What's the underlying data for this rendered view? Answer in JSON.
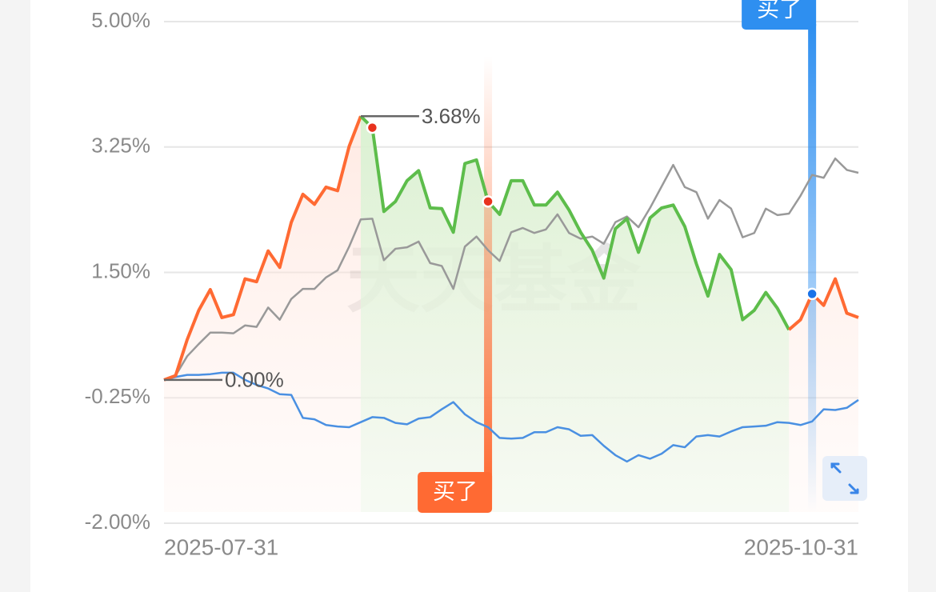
{
  "chart_data": {
    "type": "line",
    "categories": [
      "2025-07-31",
      null,
      null,
      null,
      null,
      null,
      null,
      null,
      null,
      null,
      null,
      null,
      null,
      null,
      null,
      null,
      null,
      null,
      null,
      null,
      null,
      null,
      null,
      null,
      null,
      null,
      null,
      null,
      null,
      null,
      null,
      null,
      null,
      null,
      null,
      null,
      null,
      null,
      null,
      null,
      null,
      null,
      null,
      null,
      null,
      null,
      null,
      null,
      null,
      null,
      null,
      null,
      null,
      null,
      null,
      null,
      null,
      null,
      null,
      null,
      "2025-10-31"
    ],
    "ylim": [
      -2,
      5
    ],
    "yticks": [
      {
        "value": -2,
        "label": "-2.00%"
      },
      {
        "value": -0.25,
        "label": "-0.25%"
      },
      {
        "value": 1.5,
        "label": "1.50%"
      },
      {
        "value": 3.25,
        "label": "3.25%"
      },
      {
        "value": 5,
        "label": "5.00%"
      }
    ],
    "grid": true,
    "watermark": "天天基金",
    "drawdown_color": "#5dbd4b",
    "series": [
      {
        "color": "#ff6a33",
        "values": [
          0,
          0.06,
          0.56,
          0.97,
          1.26,
          0.87,
          0.91,
          1.41,
          1.37,
          1.8,
          1.57,
          2.2,
          2.59,
          2.45,
          2.69,
          2.64,
          3.26,
          3.68,
          3.52,
          2.35,
          2.49,
          2.78,
          2.92,
          2.4,
          2.39,
          2.06,
          3.02,
          3.07,
          2.49,
          2.31,
          2.78,
          2.78,
          2.44,
          2.44,
          2.62,
          2.37,
          2.06,
          1.81,
          1.42,
          2.11,
          2.25,
          1.78,
          2.26,
          2.4,
          2.44,
          2.14,
          1.62,
          1.17,
          1.75,
          1.54,
          0.84,
          0.97,
          1.22,
          1.0,
          0.7,
          0.84,
          1.2,
          1.04,
          1.41,
          0.93,
          0.87
        ],
        "value_labels": [
          "0.00%",
          null,
          null,
          null,
          null,
          null,
          null,
          null,
          null,
          null,
          null,
          null,
          null,
          null,
          null,
          null,
          null,
          "3.68%",
          null,
          null,
          null,
          null,
          null,
          null,
          null,
          null,
          null,
          null,
          null,
          null,
          null,
          null,
          null,
          null,
          null,
          null,
          null,
          null,
          null,
          null,
          null,
          null,
          null,
          null,
          null,
          null,
          null,
          null,
          null,
          null,
          null,
          null,
          null,
          null,
          null,
          null,
          null,
          null,
          null,
          null,
          null
        ]
      },
      {
        "color": "#999999",
        "values": [
          0,
          0.06,
          0.33,
          0.5,
          0.66,
          0.66,
          0.65,
          0.76,
          0.74,
          1.01,
          0.84,
          1.13,
          1.27,
          1.27,
          1.43,
          1.53,
          1.86,
          2.24,
          2.25,
          1.67,
          1.83,
          1.85,
          1.93,
          1.63,
          1.59,
          1.27,
          1.86,
          2.0,
          1.81,
          1.66,
          2.06,
          2.12,
          2.05,
          2.1,
          2.31,
          2.05,
          1.97,
          2.0,
          1.9,
          2.2,
          2.28,
          2.13,
          2.4,
          2.7,
          3.0,
          2.69,
          2.62,
          2.25,
          2.51,
          2.39,
          1.99,
          2.05,
          2.39,
          2.3,
          2.32,
          2.57,
          2.86,
          2.82,
          3.09,
          2.93,
          2.89
        ]
      },
      {
        "color": "#4a90e2",
        "values": [
          0,
          0.04,
          0.07,
          0.07,
          0.08,
          0.1,
          0.1,
          0.0,
          -0.07,
          -0.12,
          -0.2,
          -0.21,
          -0.53,
          -0.55,
          -0.63,
          -0.65,
          -0.66,
          -0.59,
          -0.52,
          -0.53,
          -0.6,
          -0.62,
          -0.54,
          -0.52,
          -0.41,
          -0.31,
          -0.48,
          -0.59,
          -0.66,
          -0.81,
          -0.82,
          -0.81,
          -0.73,
          -0.73,
          -0.66,
          -0.69,
          -0.78,
          -0.77,
          -0.92,
          -1.05,
          -1.14,
          -1.05,
          -1.1,
          -1.03,
          -0.91,
          -0.94,
          -0.79,
          -0.77,
          -0.79,
          -0.72,
          -0.66,
          -0.65,
          -0.64,
          -0.59,
          -0.6,
          -0.63,
          -0.58,
          -0.41,
          -0.42,
          -0.39,
          -0.28
        ]
      }
    ],
    "dots": [
      {
        "at": 18,
        "color": "#e8321e"
      },
      {
        "at": 28,
        "color": "#e8321e"
      },
      {
        "at": 56,
        "color": "#1a73e8"
      }
    ],
    "markers": [
      {
        "at": 28,
        "label": "买了",
        "color": "#ff6a33",
        "side": "bottom"
      },
      {
        "at": 56,
        "label": "买了",
        "color": "#2e8ff0",
        "side": "top"
      }
    ]
  }
}
